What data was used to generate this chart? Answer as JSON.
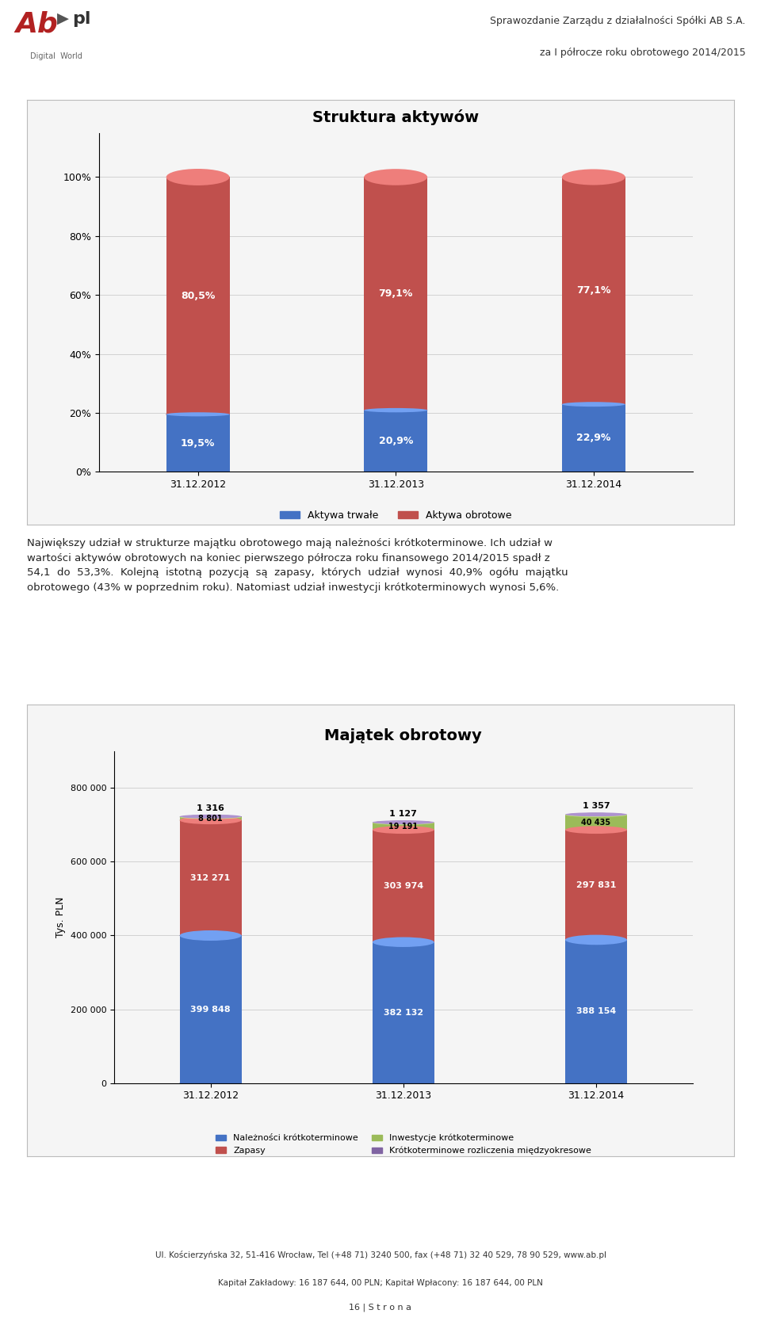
{
  "page_title_line1": "Sprawozdanie Zarządu z działalności Spółki AB S.A.",
  "page_title_line2": "za I półrocze roku obrotowego 2014/2015",
  "page_footer_line1": "Ul. Kościerzyńska 32, 51-416 Wrocław, Tel (+48 71) 3240 500, fax (+48 71) 32 40 529, 78 90 529, www.ab.pl",
  "page_footer_line2": "Kapitał Zakładowy: 16 187 644, 00 PLN; Kapitał Wpłacony: 16 187 644, 00 PLN",
  "page_number": "16 | S t r o n a",
  "chart1_title": "Struktura aktywów",
  "chart1_categories": [
    "31.12.2012",
    "31.12.2013",
    "31.12.2014"
  ],
  "chart1_trwale": [
    19.5,
    20.9,
    22.9
  ],
  "chart1_obrotowe": [
    80.5,
    79.1,
    77.1
  ],
  "chart1_trwale_labels": [
    "19,5%",
    "20,9%",
    "22,9%"
  ],
  "chart1_obrotowe_labels": [
    "80,5%",
    "79,1%",
    "77,1%"
  ],
  "chart1_color_trwale": "#4472C4",
  "chart1_color_obrotowe": "#C0504D",
  "chart1_legend_trwale": "Aktywa trwałe",
  "chart1_legend_obrotowe": "Aktywa obrotowe",
  "chart1_yticks": [
    0,
    20,
    40,
    60,
    80,
    100
  ],
  "chart1_ytick_labels": [
    "0%",
    "20%",
    "40%",
    "60%",
    "80%",
    "100%"
  ],
  "paragraph_text": "Największy udział w strukturze majątku obrotowego mają należności krótkoterminowe. Ich udział w\nwartości aktywów obrotowych na koniec pierwszego półrocza roku finansowego 2014/2015 spadł z\n54,1  do  53,3%.  Kolejną  istotną  pozycją  są  zapasy,  których  udział  wynosi  40,9%  ogółu  majątku\nobrotowego (43% w poprzednim roku). Natomiast udział inwestycji krótkoterminowych wynosi 5,6%.",
  "chart2_title": "Majątek obrotowy",
  "chart2_categories": [
    "31.12.2012",
    "31.12.2013",
    "31.12.2014"
  ],
  "chart2_naleznosci": [
    399848,
    382132,
    388154
  ],
  "chart2_zapasy": [
    312271,
    303974,
    297831
  ],
  "chart2_inwestycje": [
    8801,
    19191,
    40435
  ],
  "chart2_krotkoterminowe": [
    1316,
    1127,
    1357
  ],
  "chart2_color_naleznosci": "#4472C4",
  "chart2_color_zapasy": "#C0504D",
  "chart2_color_inwestycje": "#9BBB59",
  "chart2_color_krotkoterminowe": "#8064A2",
  "chart2_legend_naleznosci": "Należności krótkoterminowe",
  "chart2_legend_zapasy": "Zapasy",
  "chart2_legend_inwestycje": "Inwestycje krótkoterminowe",
  "chart2_legend_krotkoterminowe": "Krótkoterminowe rozliczenia międzyokresowe",
  "chart2_ylabel": "Tys. PLN",
  "chart2_yticks": [
    0,
    200000,
    400000,
    600000,
    800000
  ],
  "chart2_ytick_labels": [
    "0",
    "200 000",
    "400 000",
    "600 000",
    "800 000"
  ],
  "chart2_ylim": [
    0,
    900000
  ],
  "chart2_naleznosci_labels": [
    "399 848",
    "382 132",
    "388 154"
  ],
  "chart2_zapasy_labels": [
    "312 271",
    "303 974",
    "297 831"
  ],
  "chart2_inwestycje_labels": [
    "8 801",
    "19 191",
    "40 435"
  ],
  "chart2_krotkoterminowe_labels": [
    "1 316",
    "1 127",
    "1 357"
  ],
  "bg_color": "#FFFFFF",
  "chart_bg_color": "#F5F5F5",
  "separator_color": "#8B0000"
}
